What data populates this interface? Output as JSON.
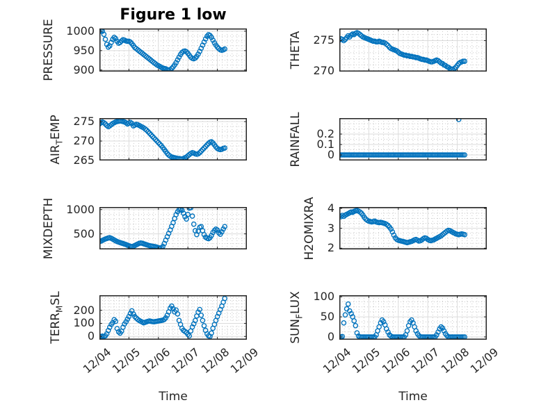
{
  "figure": {
    "title": "Figure 1 low",
    "xlabel": "Time",
    "xtick_labels": [
      "12/04",
      "12/05",
      "12/06",
      "12/07",
      "12/08",
      "12/09"
    ],
    "xtick_values": [
      0,
      1,
      2,
      3,
      4,
      5
    ],
    "xlim_days": [
      0,
      5
    ],
    "colors": {
      "marker": "#0072BD",
      "axis": "#222222",
      "grid": "#dbdbdb",
      "minor_grid": "#c8c8c8",
      "text": "#262626",
      "title": "#000000"
    }
  },
  "chart_data": [
    {
      "type": "scatter",
      "name": "PRESSURE",
      "ylabel": {
        "pre": "PRESSURE",
        "sub": "",
        "post": ""
      },
      "ylim": [
        896,
        1007
      ],
      "ytick_values": [
        900,
        950,
        1000
      ],
      "ytick_labels": [
        "900",
        "950",
        "1000"
      ],
      "y_minor_step": 12.5,
      "x_start": 0,
      "x_step_days": 0.05,
      "values": [
        999,
        1001,
        1000,
        992,
        979,
        966,
        959,
        962,
        971,
        979,
        984,
        981,
        974,
        969,
        971,
        975,
        978,
        977,
        975,
        974,
        974,
        972,
        968,
        963,
        958,
        955,
        952,
        949,
        946,
        943,
        940,
        937,
        934,
        931,
        928,
        925,
        922,
        919,
        916,
        913,
        911,
        909,
        907,
        905,
        904,
        903,
        901,
        900,
        901,
        904,
        908,
        913,
        919,
        926,
        933,
        940,
        945,
        948,
        949,
        947,
        943,
        938,
        933,
        930,
        929,
        931,
        935,
        941,
        948,
        956,
        964,
        972,
        980,
        987,
        991,
        989,
        984,
        977,
        970,
        964,
        959,
        955,
        952,
        951,
        952,
        954
      ]
    },
    {
      "type": "scatter",
      "name": "THETA",
      "ylabel": {
        "pre": "THETA",
        "sub": "",
        "post": ""
      },
      "ylim": [
        269.9,
        277.0
      ],
      "ytick_values": [
        270,
        275
      ],
      "ytick_labels": [
        "270",
        "275"
      ],
      "y_minor_step": 1,
      "x_start": 0,
      "x_step_days": 0.05,
      "values": [
        275.1,
        275.3,
        275.2,
        275.0,
        275.2,
        275.5,
        275.8,
        275.6,
        275.9,
        276.1,
        276.0,
        276.2,
        276.3,
        276.2,
        276.0,
        275.8,
        275.6,
        275.5,
        275.4,
        275.3,
        275.2,
        275.1,
        275.0,
        274.9,
        274.9,
        274.8,
        274.8,
        274.9,
        274.8,
        274.7,
        274.7,
        274.6,
        274.4,
        274.2,
        273.9,
        273.7,
        273.6,
        273.5,
        273.4,
        273.3,
        273.1,
        272.9,
        272.8,
        272.7,
        272.6,
        272.6,
        272.5,
        272.5,
        272.4,
        272.4,
        272.3,
        272.3,
        272.2,
        272.2,
        272.1,
        272.0,
        271.9,
        271.9,
        271.8,
        271.8,
        271.7,
        271.6,
        271.5,
        271.5,
        271.6,
        271.7,
        271.8,
        271.7,
        271.5,
        271.3,
        271.2,
        271.0,
        270.9,
        270.7,
        270.6,
        270.4,
        270.3,
        270.3,
        270.4,
        270.6,
        270.9,
        271.2,
        271.4,
        271.5,
        271.6,
        271.6
      ]
    },
    {
      "type": "scatter",
      "name": "AIR_TEMP",
      "ylabel": {
        "pre": "AIR",
        "sub": "T",
        "post": "EMP"
      },
      "ylim": [
        265,
        275.9
      ],
      "ytick_values": [
        265,
        270,
        275
      ],
      "ytick_labels": [
        "265",
        "270",
        "275"
      ],
      "y_minor_step": 1.25,
      "x_start": 0,
      "x_step_days": 0.05,
      "values": [
        274.4,
        274.7,
        274.9,
        274.7,
        274.4,
        274.0,
        273.7,
        273.9,
        274.2,
        274.5,
        274.7,
        274.9,
        275.0,
        275.1,
        275.2,
        275.1,
        275.0,
        274.9,
        274.7,
        274.4,
        274.6,
        274.8,
        274.5,
        273.9,
        274.1,
        274.3,
        274.2,
        274.0,
        273.8,
        273.6,
        273.4,
        273.1,
        272.8,
        272.4,
        272.0,
        271.6,
        271.2,
        270.8,
        270.4,
        270.0,
        269.6,
        269.2,
        268.8,
        268.3,
        267.8,
        267.3,
        266.8,
        266.4,
        266.1,
        265.9,
        265.8,
        265.7,
        265.6,
        265.5,
        265.5,
        265.4,
        265.4,
        265.5,
        265.7,
        265.9,
        266.2,
        266.5,
        266.8,
        267.0,
        266.9,
        266.7,
        266.6,
        266.7,
        267.0,
        267.4,
        267.8,
        268.2,
        268.6,
        269.0,
        269.4,
        269.7,
        269.8,
        269.5,
        269.0,
        268.5,
        268.1,
        267.9,
        267.8,
        267.9,
        268.1,
        268.2
      ]
    },
    {
      "type": "scatter",
      "name": "RAINFALL",
      "ylabel": {
        "pre": "RAINFALL",
        "sub": "",
        "post": ""
      },
      "ylim": [
        -0.053,
        0.353
      ],
      "ytick_values": [
        0,
        0.1,
        0.2
      ],
      "ytick_labels": [
        "0",
        "0.1",
        "0.2"
      ],
      "y_minor_step": 0.05,
      "x_start": 0,
      "x_step_days": 0.05,
      "values": [
        0,
        0,
        0,
        0,
        0,
        0,
        0,
        0,
        0,
        0,
        0,
        0,
        0,
        0,
        0,
        0,
        0,
        0,
        0,
        0,
        0,
        0,
        0,
        0,
        0,
        0,
        0,
        0,
        0,
        0,
        0,
        0,
        0,
        0,
        0,
        0,
        0,
        0,
        0,
        0,
        0,
        0,
        0,
        0,
        0,
        0,
        0,
        0,
        0,
        0,
        0,
        0,
        0,
        0,
        0,
        0,
        0,
        0,
        0,
        0,
        0,
        0,
        0,
        0,
        0,
        0,
        0,
        0,
        0,
        0,
        0,
        0,
        0,
        0,
        0,
        0,
        0,
        0,
        0,
        0,
        0,
        0,
        0,
        0,
        0,
        0
      ],
      "extra_points": [
        {
          "x": 4.05,
          "y": 0.34
        }
      ]
    },
    {
      "type": "scatter",
      "name": "MIXDEPTH",
      "ylabel": {
        "pre": "MIXDEPTH",
        "sub": "",
        "post": ""
      },
      "ylim": [
        180,
        1053
      ],
      "ytick_values": [
        500,
        1000
      ],
      "ytick_labels": [
        "500",
        "1000"
      ],
      "y_minor_step": 100,
      "x_start": 0,
      "x_step_days": 0.05,
      "values": [
        340,
        350,
        365,
        380,
        395,
        405,
        415,
        420,
        408,
        392,
        375,
        358,
        342,
        330,
        320,
        310,
        300,
        290,
        280,
        268,
        255,
        244,
        236,
        246,
        260,
        276,
        290,
        304,
        312,
        306,
        296,
        286,
        276,
        266,
        256,
        250,
        245,
        240,
        234,
        226,
        216,
        207,
        212,
        240,
        300,
        370,
        440,
        510,
        580,
        655,
        730,
        815,
        895,
        955,
        995,
        1005,
        985,
        925,
        855,
        805,
        900,
        1030,
        1040,
        865,
        700,
        565,
        485,
        555,
        635,
        650,
        565,
        485,
        432,
        412,
        400,
        420,
        468,
        528,
        570,
        598,
        578,
        522,
        492,
        540,
        600,
        650
      ]
    },
    {
      "type": "scatter",
      "name": "H2OMIXRA",
      "ylabel": {
        "pre": "H2OMIXRA",
        "sub": "",
        "post": ""
      },
      "ylim": [
        1.94,
        4.07
      ],
      "ytick_values": [
        2,
        3,
        4
      ],
      "ytick_labels": [
        "2",
        "3",
        "4"
      ],
      "y_minor_step": 0.25,
      "x_start": 0,
      "x_step_days": 0.05,
      "values": [
        3.62,
        3.58,
        3.65,
        3.6,
        3.66,
        3.7,
        3.74,
        3.78,
        3.82,
        3.8,
        3.85,
        3.88,
        3.9,
        3.86,
        3.82,
        3.76,
        3.66,
        3.55,
        3.46,
        3.4,
        3.36,
        3.34,
        3.32,
        3.34,
        3.36,
        3.32,
        3.3,
        3.28,
        3.3,
        3.28,
        3.26,
        3.24,
        3.2,
        3.14,
        3.06,
        2.96,
        2.82,
        2.66,
        2.52,
        2.44,
        2.4,
        2.38,
        2.36,
        2.34,
        2.32,
        2.3,
        2.28,
        2.3,
        2.32,
        2.34,
        2.38,
        2.42,
        2.44,
        2.4,
        2.36,
        2.38,
        2.42,
        2.48,
        2.52,
        2.5,
        2.44,
        2.4,
        2.38,
        2.4,
        2.42,
        2.46,
        2.5,
        2.54,
        2.58,
        2.62,
        2.68,
        2.74,
        2.8,
        2.86,
        2.9,
        2.88,
        2.84,
        2.8,
        2.76,
        2.72,
        2.7,
        2.68,
        2.7,
        2.72,
        2.7,
        2.68
      ]
    },
    {
      "type": "scatter",
      "name": "TERR_MSL",
      "ylabel": {
        "pre": "TERR",
        "sub": "M",
        "post": "SL"
      },
      "ylim": [
        -25,
        315
      ],
      "ytick_values": [
        0,
        100,
        200
      ],
      "ytick_labels": [
        "0",
        "100",
        "200"
      ],
      "y_minor_step": 25,
      "x_start": 0,
      "x_step_days": 0.05,
      "values": [
        0,
        0,
        2,
        0,
        5,
        20,
        45,
        70,
        92,
        105,
        128,
        115,
        60,
        35,
        25,
        40,
        70,
        95,
        112,
        132,
        152,
        176,
        196,
        172,
        152,
        140,
        130,
        122,
        116,
        110,
        104,
        108,
        112,
        116,
        118,
        115,
        113,
        112,
        114,
        116,
        118,
        120,
        122,
        125,
        130,
        142,
        162,
        188,
        216,
        232,
        212,
        188,
        202,
        172,
        122,
        92,
        62,
        46,
        38,
        30,
        16,
        4,
        42,
        72,
        96,
        122,
        156,
        186,
        206,
        162,
        122,
        82,
        46,
        20,
        5,
        0,
        26,
        62,
        92,
        122,
        152,
        178,
        205,
        232,
        262,
        290
      ]
    },
    {
      "type": "scatter",
      "name": "SUN_FLUX",
      "ylabel": {
        "pre": "SUN",
        "sub": "F",
        "post": "LUX"
      },
      "ylim": [
        -7,
        104
      ],
      "ytick_values": [
        0,
        50,
        100
      ],
      "ytick_labels": [
        "0",
        "50",
        "100"
      ],
      "y_minor_step": 12.5,
      "x_start": 0,
      "x_step_days": 0.05,
      "values": [
        0,
        0,
        1,
        35,
        55,
        70,
        82,
        65,
        58,
        50,
        40,
        28,
        10,
        2,
        0,
        0,
        0,
        0,
        0,
        0,
        0,
        0,
        0,
        0,
        0,
        5,
        15,
        25,
        35,
        42,
        38,
        30,
        20,
        12,
        5,
        2,
        0,
        0,
        0,
        0,
        0,
        0,
        0,
        0,
        0,
        5,
        15,
        28,
        38,
        42,
        35,
        25,
        15,
        8,
        3,
        0,
        0,
        0,
        0,
        0,
        0,
        0,
        0,
        0,
        0,
        0,
        5,
        12,
        20,
        25,
        22,
        15,
        8,
        3,
        0,
        0,
        0,
        0,
        0,
        0,
        0,
        0,
        0,
        0,
        0,
        0
      ]
    }
  ]
}
